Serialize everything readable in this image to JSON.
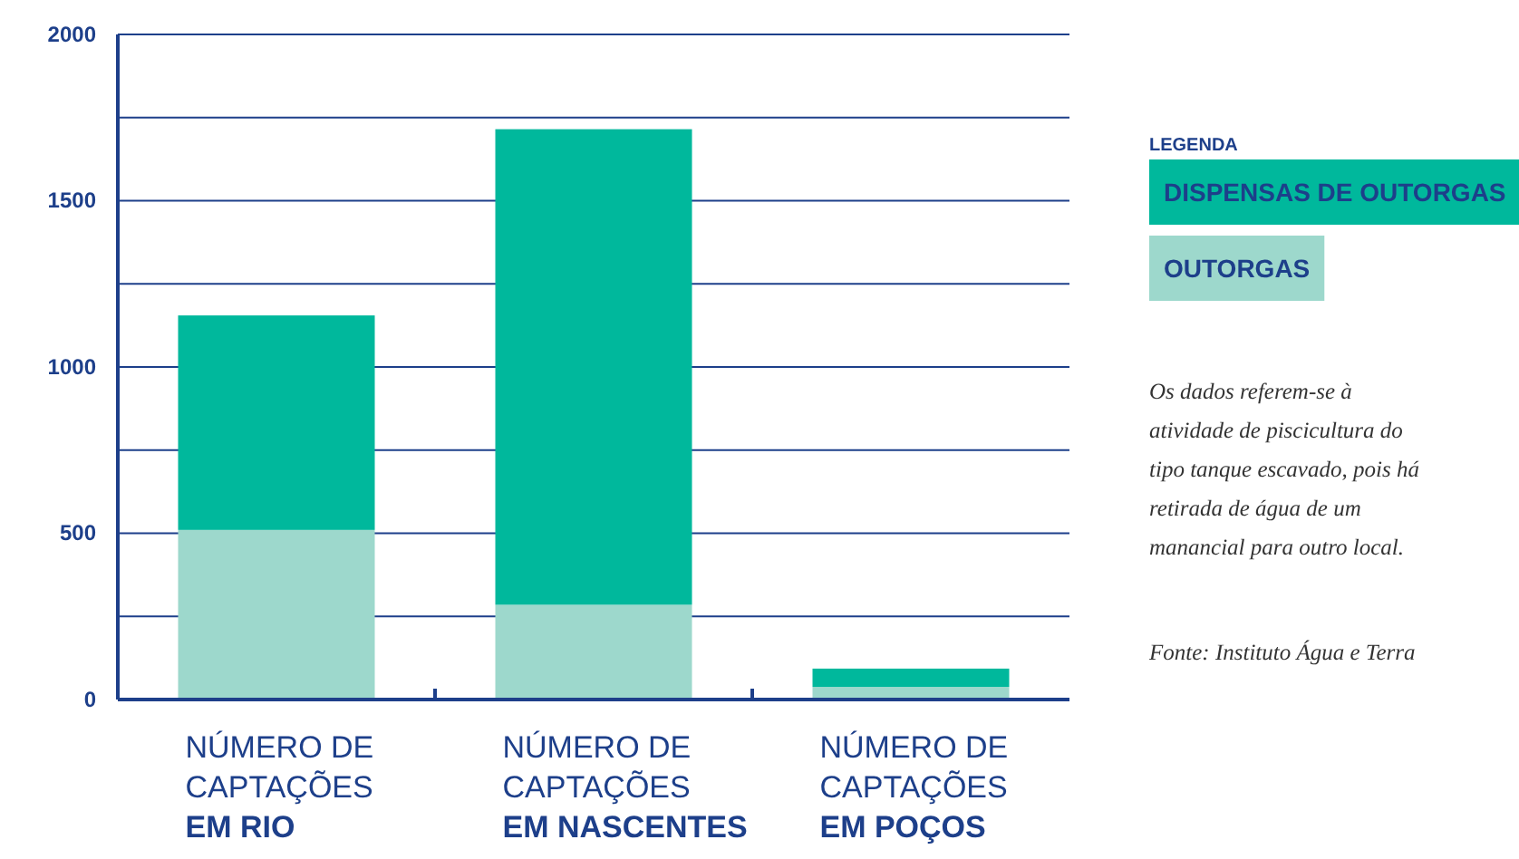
{
  "chart_data": {
    "type": "bar",
    "stacked": true,
    "categories": [
      "NÚMERO DE\nCAPTAÇÕES\nEM RIO",
      "NÚMERO DE\nCAPTAÇÕES\nEM NASCENTES",
      "NÚMERO DE\nCAPTAÇÕES\nEM POÇOS"
    ],
    "series": [
      {
        "name": "OUTORGAS",
        "color": "#9dd8cc",
        "values": [
          510,
          285,
          38
        ]
      },
      {
        "name": "DISPENSAS DE OUTORGAS",
        "color": "#00b89c",
        "values": [
          645,
          1430,
          55
        ]
      }
    ],
    "ylim": [
      0,
      2000
    ],
    "yticks": [
      0,
      {
        "value": 250,
        "label": null
      },
      500,
      {
        "value": 750,
        "label": null
      },
      1000,
      {
        "value": 1250,
        "label": null
      },
      1500,
      {
        "value": 1750,
        "label": null
      },
      2000
    ],
    "grid": "y",
    "legend": "right",
    "legend_title": "LEGENDA",
    "annotations": [
      "Os dados referem-se à atividade de piscicultura do tipo tanque escavado, pois há retirada de água de um manancial para outro local.",
      "Fonte: Instituto Água e Terra"
    ]
  }
}
